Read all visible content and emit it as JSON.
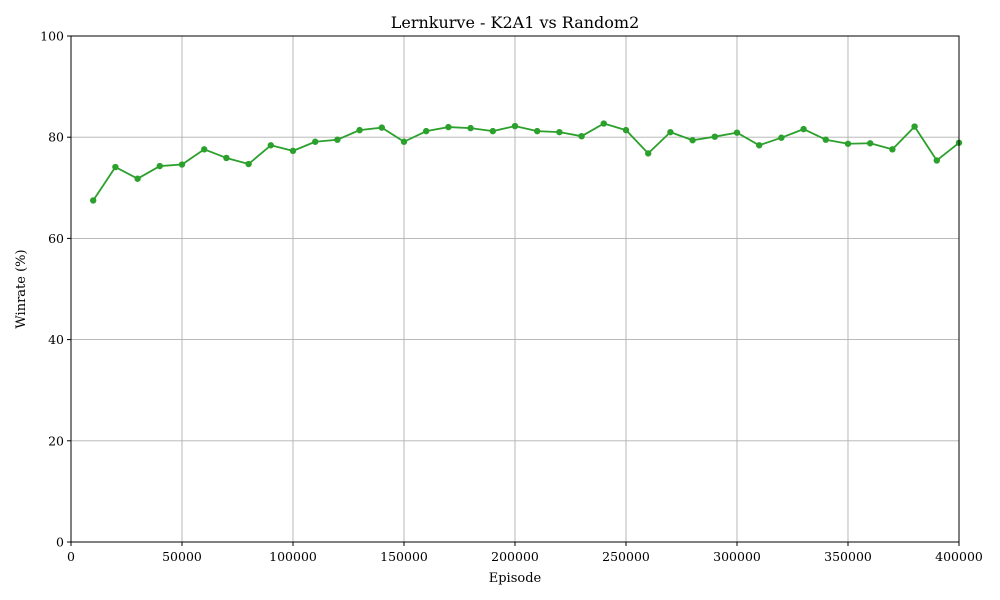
{
  "chart_data": {
    "type": "line",
    "title": "Lernkurve - K2A1 vs Random2",
    "xlabel": "Episode",
    "ylabel": "Winrate (%)",
    "xlim": [
      0,
      400000
    ],
    "ylim": [
      0,
      100
    ],
    "x_ticks": [
      0,
      50000,
      100000,
      150000,
      200000,
      250000,
      300000,
      350000,
      400000
    ],
    "y_ticks": [
      0,
      20,
      40,
      60,
      80,
      100
    ],
    "grid": true,
    "color": "#2ca02c",
    "series": [
      {
        "x": [
          10000,
          20000,
          30000,
          40000,
          50000,
          60000,
          70000,
          80000,
          90000,
          100000,
          110000,
          120000,
          130000,
          140000,
          150000,
          160000,
          170000,
          180000,
          190000,
          200000,
          210000,
          220000,
          230000,
          240000,
          250000,
          260000,
          270000,
          280000,
          290000,
          300000,
          310000,
          320000,
          330000,
          340000,
          350000,
          360000,
          370000,
          380000,
          390000,
          400000
        ],
        "values": [
          67.5,
          74.1,
          71.8,
          74.3,
          74.6,
          77.6,
          75.9,
          74.7,
          78.4,
          77.3,
          79.1,
          79.5,
          81.4,
          81.9,
          79.1,
          81.2,
          82.0,
          81.8,
          81.2,
          82.2,
          81.2,
          81.0,
          80.2,
          82.7,
          81.4,
          76.8,
          81.0,
          79.4,
          80.1,
          80.9,
          78.4,
          79.9,
          81.6,
          79.5,
          78.7,
          78.8,
          77.6,
          82.1,
          75.4,
          78.9
        ]
      }
    ]
  }
}
